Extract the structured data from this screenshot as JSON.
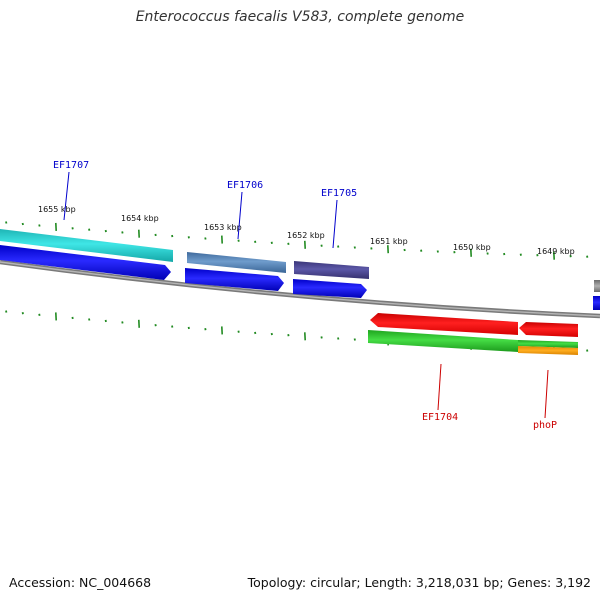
{
  "title": "Enterococcus faecalis V583, complete genome",
  "footer": {
    "accession": "Accession: NC_004668",
    "summary": "Topology: circular; Length: 3,218,031 bp; Genes: 3,192"
  },
  "colors": {
    "backbone": "#8a8a8a",
    "tick": "#228b22",
    "forward_label": "#0000cc",
    "reverse_label": "#cc0000"
  },
  "scale": {
    "kbp_labels": [
      "1655 kbp",
      "1654 kbp",
      "1653 kbp",
      "1652 kbp",
      "1651 kbp",
      "1650 kbp",
      "1649 kbp"
    ]
  },
  "genes": {
    "forward_labels": [
      "EF1707",
      "EF1706",
      "EF1705"
    ],
    "reverse_labels": [
      "EF1704",
      "phoP"
    ]
  }
}
